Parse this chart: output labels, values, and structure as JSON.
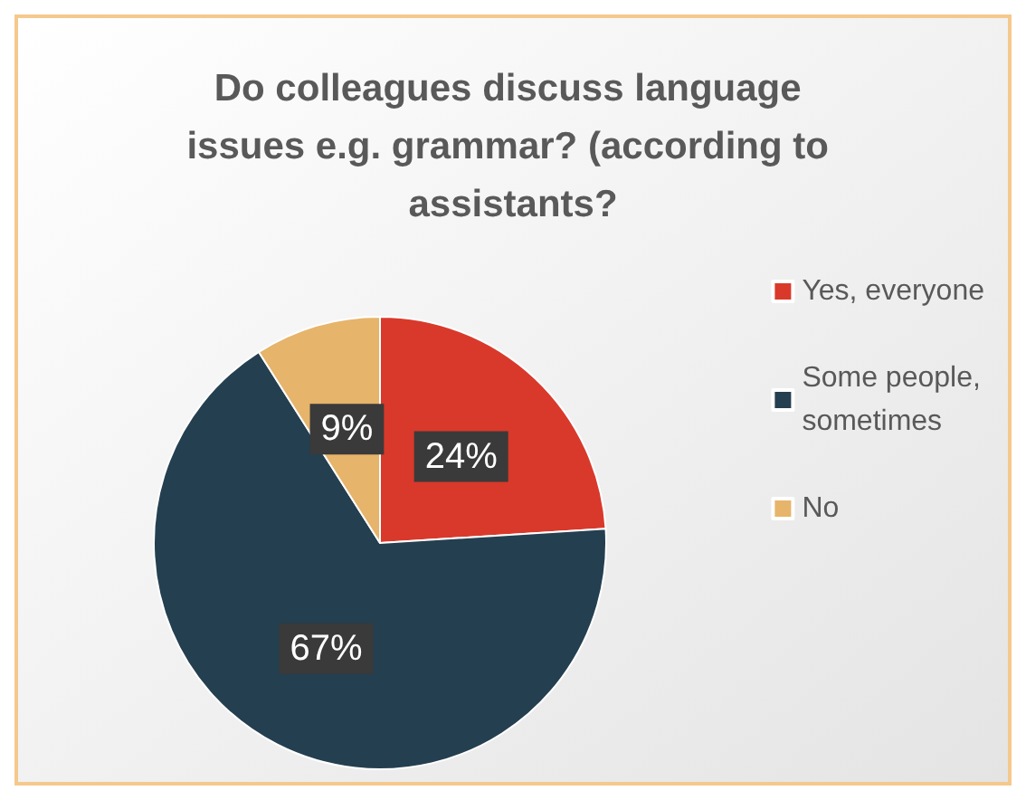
{
  "chart_data": {
    "type": "pie",
    "title": "Do colleagues discuss language issues e.g. grammar? (according to assistants?",
    "categories": [
      "Yes, everyone",
      "Some people, sometimes",
      "No"
    ],
    "values": [
      24,
      67,
      9
    ],
    "colors": [
      "#d9392b",
      "#243f50",
      "#e6b46a"
    ],
    "value_labels": [
      "24%",
      "67%",
      "9%"
    ],
    "legend": "right"
  }
}
